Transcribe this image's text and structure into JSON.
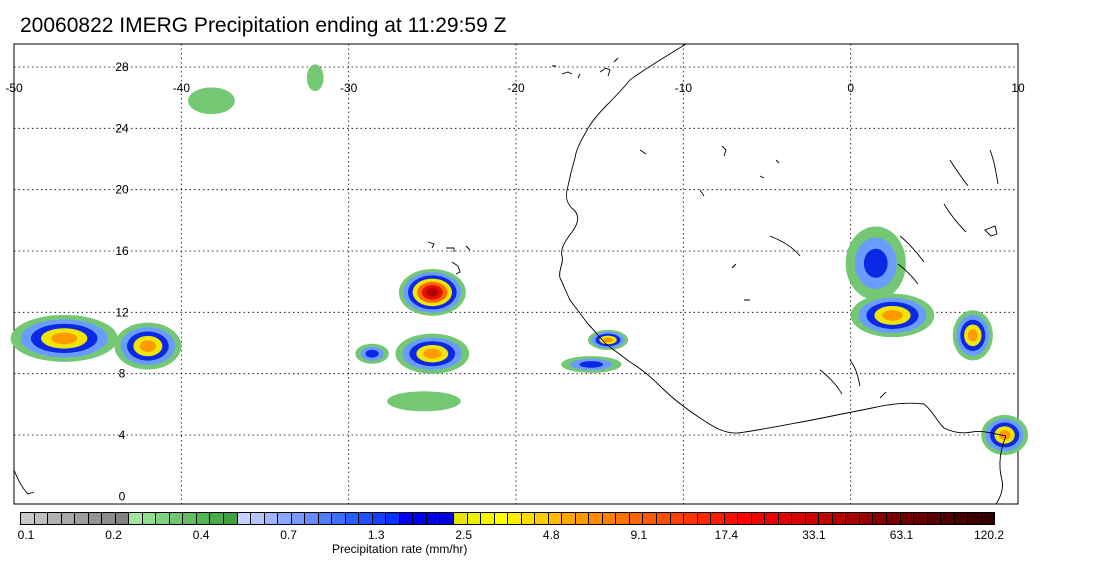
{
  "title": "20060822 IMERG Precipitation ending at 11:29:59 Z",
  "map": {
    "lon_ticks": [
      "-50",
      "-40",
      "-30",
      "-20",
      "-10",
      "0",
      "10"
    ],
    "lat_ticks": [
      "28",
      "24",
      "20",
      "16",
      "12",
      "8",
      "4",
      "0"
    ],
    "lon_range": [
      -50,
      10
    ],
    "lat_range": [
      -0.5,
      29.5
    ],
    "grid": true
  },
  "colorbar": {
    "label": "Precipitation rate (mm/hr)",
    "tick_labels": [
      "0.1",
      "0.2",
      "0.4",
      "0.7",
      "1.3",
      "2.5",
      "4.8",
      "9.1",
      "17.4",
      "33.1",
      "63.1",
      "120.2"
    ],
    "colors": [
      "#c8c8c8",
      "#bdbdbd",
      "#b2b2b2",
      "#a8a8a8",
      "#9e9e9e",
      "#949494",
      "#8c8c8c",
      "#828282",
      "#a0e6a0",
      "#90dc90",
      "#80d280",
      "#70c870",
      "#60be60",
      "#52b452",
      "#48aa48",
      "#3ea03e",
      "#c8d2ff",
      "#b4c4ff",
      "#a0b6ff",
      "#8ca8ff",
      "#789aff",
      "#648cff",
      "#507eff",
      "#3c70ff",
      "#2860ff",
      "#1e50ff",
      "#1440ff",
      "#0a32ff",
      "#0000ff",
      "#0000f0",
      "#0000e6",
      "#0000dc",
      "#e6e600",
      "#eeee00",
      "#f6f600",
      "#ffff00",
      "#ffee00",
      "#ffdd00",
      "#ffcc00",
      "#ffbb00",
      "#ffa500",
      "#ff9900",
      "#ff8c00",
      "#ff8000",
      "#ff7300",
      "#ff6600",
      "#ff5a00",
      "#ff4d00",
      "#ff4000",
      "#ff3300",
      "#ff2600",
      "#ff1a00",
      "#ff0d00",
      "#ff0000",
      "#f50000",
      "#eb0000",
      "#e10000",
      "#d70000",
      "#cd0000",
      "#c30000",
      "#b40000",
      "#a50000",
      "#960000",
      "#870000",
      "#7a0000",
      "#6e0000",
      "#640000",
      "#5a0000",
      "#500000",
      "#460000",
      "#3c0000",
      "#320000"
    ]
  },
  "precip_cells": [
    {
      "lon": -47,
      "lat": 10.3,
      "rx": 3.2,
      "ry": 1.4,
      "level": "heavy"
    },
    {
      "lon": -42,
      "lat": 9.8,
      "rx": 2.0,
      "ry": 1.4,
      "level": "heavy"
    },
    {
      "lon": -28.6,
      "lat": 9.3,
      "rx": 1.0,
      "ry": 0.6,
      "level": "moderate"
    },
    {
      "lon": -25.0,
      "lat": 9.3,
      "rx": 2.2,
      "ry": 1.2,
      "level": "heavy"
    },
    {
      "lon": -25.0,
      "lat": 13.3,
      "rx": 2.0,
      "ry": 1.4,
      "level": "extreme"
    },
    {
      "lon": -25.5,
      "lat": 6.2,
      "rx": 2.2,
      "ry": 0.6,
      "level": "light"
    },
    {
      "lon": -14.5,
      "lat": 10.2,
      "rx": 1.2,
      "ry": 0.6,
      "level": "heavy"
    },
    {
      "lon": -15.5,
      "lat": 8.6,
      "rx": 1.8,
      "ry": 0.5,
      "level": "moderate"
    },
    {
      "lon": 1.5,
      "lat": 15.2,
      "rx": 1.8,
      "ry": 2.2,
      "level": "moderate"
    },
    {
      "lon": 2.5,
      "lat": 11.8,
      "rx": 2.5,
      "ry": 1.3,
      "level": "heavy"
    },
    {
      "lon": 7.3,
      "lat": 10.5,
      "rx": 1.2,
      "ry": 1.5,
      "level": "heavy"
    },
    {
      "lon": 9.2,
      "lat": 4.0,
      "rx": 1.4,
      "ry": 1.2,
      "level": "heavy"
    },
    {
      "lon": -38.2,
      "lat": 25.8,
      "rx": 1.4,
      "ry": 0.8,
      "level": "light"
    },
    {
      "lon": -32,
      "lat": 27.3,
      "rx": 0.5,
      "ry": 0.8,
      "level": "light"
    }
  ]
}
